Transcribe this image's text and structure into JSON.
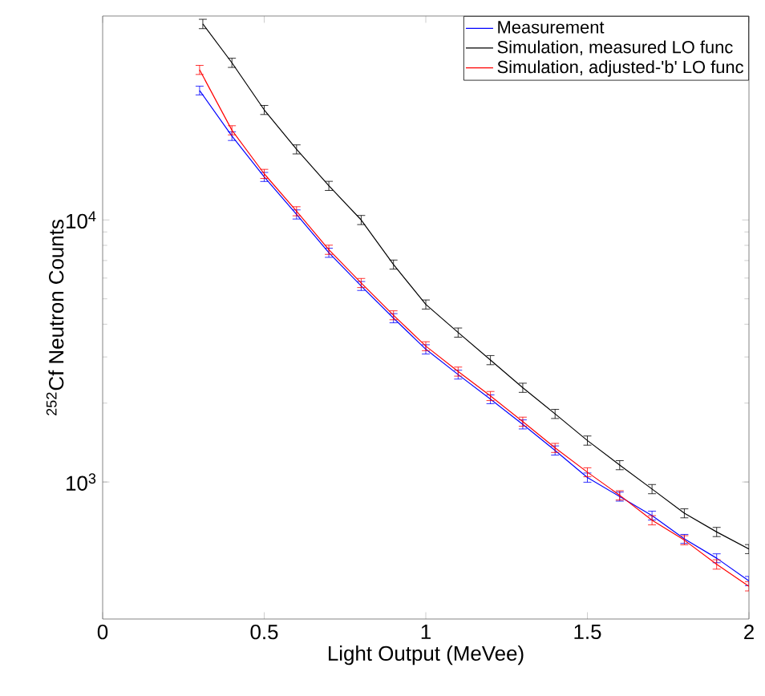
{
  "chart_data": {
    "type": "line",
    "xlabel": "Light Output (MeVee)",
    "ylabel": "$^{252}$Cf Neutron Counts",
    "log": "y",
    "legend": "top right",
    "marker": "none",
    "line_style": "solid",
    "grid": false,
    "xlim": [
      0,
      2
    ],
    "ylim": [
      300,
      60000
    ],
    "xticks": [
      0,
      0.5,
      1,
      1.5,
      2
    ],
    "yticks": [
      {
        "value": 1000,
        "label": "10$^{3}$"
      },
      {
        "value": 10000,
        "label": "10$^{4}$"
      }
    ],
    "x": [
      0.3,
      0.4,
      0.5,
      0.6,
      0.7,
      0.8,
      0.9,
      1.0,
      1.1,
      1.2,
      1.3,
      1.4,
      1.5,
      1.6,
      1.7,
      1.8,
      1.9,
      2.0
    ],
    "series": [
      {
        "name": "Measurement",
        "color": "#0000ff",
        "values": [
          31200,
          20900,
          14600,
          10500,
          7500,
          5600,
          4220,
          3210,
          2570,
          2070,
          1660,
          1320,
          1040,
          880,
          745,
          607,
          512,
          419
        ],
        "errors": [
          1200,
          800,
          580,
          420,
          300,
          220,
          170,
          130,
          100,
          80,
          66,
          53,
          42,
          35,
          29,
          24,
          20,
          17
        ]
      },
      {
        "name": "Simulation, measured LO func",
        "color": "#000000",
        "x": [
          0.31,
          0.4,
          0.5,
          0.6,
          0.7,
          0.8,
          0.9,
          1.0,
          1.1,
          1.2,
          1.3,
          1.4,
          1.5,
          1.6,
          1.7,
          1.8,
          1.9,
          2.0
        ],
        "values": [
          56000,
          39800,
          26300,
          18600,
          13500,
          10000,
          6760,
          4760,
          3720,
          2920,
          2290,
          1820,
          1440,
          1160,
          940,
          760,
          645,
          555
        ],
        "errors": [
          2300,
          1600,
          1050,
          740,
          540,
          400,
          270,
          190,
          150,
          117,
          92,
          73,
          58,
          46,
          38,
          30,
          26,
          22
        ]
      },
      {
        "name": "Simulation, adjusted-'b' LO func",
        "color": "#ff0000",
        "values": [
          37400,
          22000,
          15000,
          10800,
          7700,
          5750,
          4330,
          3300,
          2640,
          2130,
          1700,
          1350,
          1090,
          890,
          715,
          600,
          485,
          400
        ],
        "errors": [
          1500,
          880,
          600,
          430,
          310,
          230,
          170,
          130,
          105,
          85,
          68,
          54,
          43,
          36,
          29,
          24,
          20,
          16
        ]
      }
    ]
  }
}
